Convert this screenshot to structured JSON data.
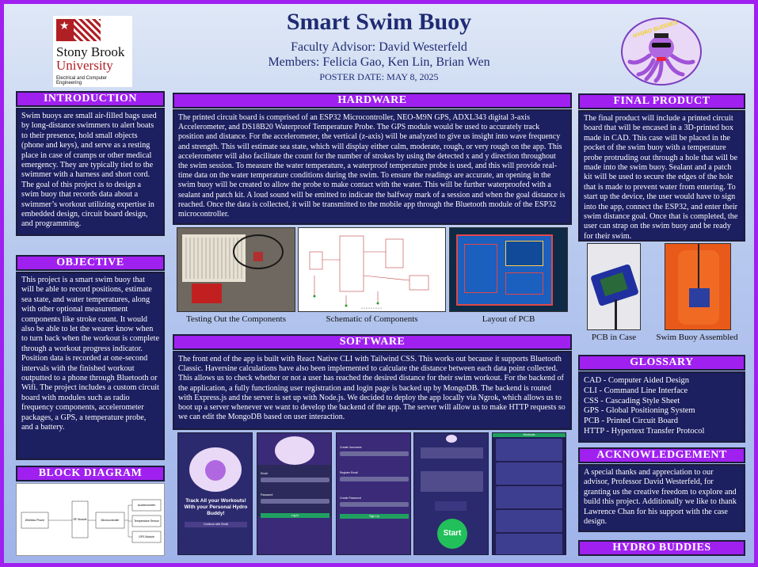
{
  "header": {
    "title": "Smart Swim Buoy",
    "advisor": "Faculty Advisor: David Westerfeld",
    "members": "Members: Felicia Gao, Ken Lin, Brian Wen",
    "date": "POSTER DATE: MAY 8, 2025",
    "logo_left": {
      "line1": "Stony Brook",
      "line2": "University",
      "line3": "Electrical and Computer Engineering"
    },
    "logo_right": {
      "text": "HYDRO BUDDIES"
    }
  },
  "introduction": {
    "heading": "INTRODUCTION",
    "body": "Swim buoys are small air-filled bags used by long-distance swimmers to alert boats to their presence, hold small objects (phone and keys), and serve as a resting place in case of cramps or other medical emergency. They are typically tied to the swimmer with a harness and short cord. The goal of this project is to design a swim buoy that records data about a swimmer’s workout utilizing expertise in embedded design, circuit board design, and programming."
  },
  "objective": {
    "heading": "OBJECTIVE",
    "body": "This project is a smart swim buoy that will be able to record positions, estimate sea state, and water temperatures, along with other optional measurement components like stroke count. It would also be able to let the wearer know when to turn back when the workout is complete through a workout progress indicator. Position data is recorded at one-second intervals with the finished workout outputted to a phone through Bluetooth or Wifi. The project includes a custom circuit board with modules such as radio frequency components, accelerometer packages, a GPS, a temperature probe, and a battery."
  },
  "block_diagram": {
    "heading": "BLOCK DIAGRAM",
    "nodes": [
      "Wireless Phone",
      "RF Module",
      "Microcontroller",
      "Accelerometer",
      "Temperature Sensor",
      "GPS Module"
    ]
  },
  "hardware": {
    "heading": "HARDWARE",
    "body": "The printed circuit board is comprised of an ESP32 Microcontroller, NEO-M9N GPS, ADXL343 digital 3-axis Accelerometer, and DS18B20 Waterproof Temperature Probe. The GPS module would be used to accurately track position and distance. For the accelerometer, the vertical (z-axis) will be analyzed to give us insight into wave frequency and strength. This will estimate sea state, which will display either calm, moderate, rough, or very rough on the app. This accelerometer will also facilitate the count for the number of strokes by using the detected x and y direction throughout the swim session. To measure the water temperature, a waterproof temperature probe is used, and this will provide real-time data on the water temperature conditions during the swim. To ensure the readings are accurate, an opening in the swim buoy will be created to allow the probe to make contact with the water. This will be further waterproofed with a sealant and patch kit. A loud sound will be emitted to indicate the halfway mark of a session and when the goal distance is reached. Once the data is collected, it will be transmitted to the mobile app through the Bluetooth module of the ESP32 microcontroller.",
    "captions": [
      "Testing Out the Components",
      "Schematic of Components",
      "Layout of PCB"
    ]
  },
  "software": {
    "heading": "SOFTWARE",
    "body": "The front end of the app is built with React Native CLI with Tailwind CSS. This works out because it supports Bluetooth Classic. Haversine calculations have also been implemented to calculate the distance between each data point collected. This allows us to check whether or not a user has reached the desired distance for their swim workout. For the backend of the application, a fully functioning user registration and login page is backed up by MongoDB. The backend is routed with Express.js and the server is set up with Node.js. We decided to deploy the app locally via Ngrok, which allows us to boot up a server whenever we want to develop the backend of the app. The server will allow us to make HTTP requests so we can edit the MongoDB based on user interaction.",
    "screens": {
      "s1_text": "Track All your Workouts! With your Personal Hydro Buddy!",
      "s1_button": "Continue with Email",
      "s2_email": "Email",
      "s2_password": "Password",
      "s2_login": "Log In",
      "s3_create": "Create Username",
      "s3_register": "Register Email",
      "s3_password": "Create Password",
      "s3_button": "Sign Up",
      "s5_start": "Start",
      "s6_title": "Workouts"
    }
  },
  "final_product": {
    "heading": "FINAL PRODUCT",
    "body": "The final product will include a printed circuit board that will be encased in a 3D-printed box made in CAD. This case will be placed in the pocket of the swim buoy with a temperature probe protruding out through a hole that will be made into the swim buoy. Sealant and a patch kit will be used to secure the edges of the hole that is made to prevent water from entering. To start up the device, the user would have to sign into the app, connect the ESP32, and enter their swim distance goal. Once that is completed, the user can strap on the swim buoy and be ready for their swim.",
    "captions": [
      "PCB in Case",
      "Swim Buoy Assembled"
    ]
  },
  "glossary": {
    "heading": "GLOSSARY",
    "items": [
      "CAD - Computer Aided Design",
      "CLI - Command Line Interface",
      "CSS - Cascading Style Sheet",
      "GPS - Global Positioning System",
      "PCB - Printed Circuit Board",
      "HTTP - Hypertext Transfer Protocol"
    ]
  },
  "acknowledgement": {
    "heading": "ACKNOWLEDGEMENT",
    "body": "A special thanks and appreciation to our advisor, Professor David Westerfeld, for granting us the creative freedom to explore and build this project. Additionally we like to thank Lawrence Chan for his support with the case design."
  },
  "hydro_buddies": {
    "heading": "HYDRO BUDDIES"
  },
  "colors": {
    "accent": "#a020f0",
    "panel": "#1c1f60",
    "title": "#1f2b73"
  }
}
